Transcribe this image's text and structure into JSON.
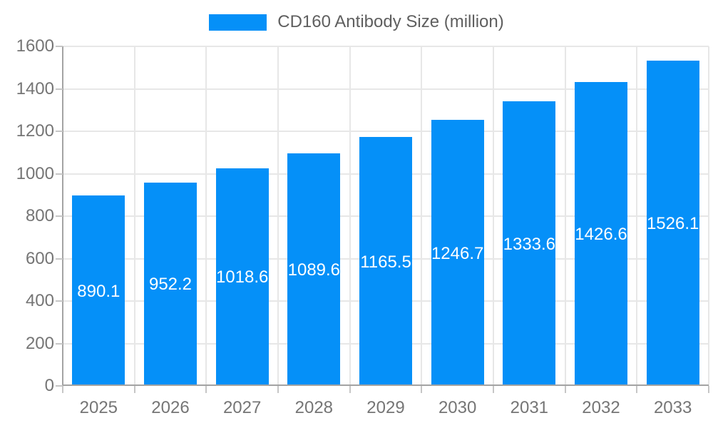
{
  "chart_data": {
    "type": "bar",
    "title": "CD160 Antibody Size (million)",
    "categories": [
      "2025",
      "2026",
      "2027",
      "2028",
      "2029",
      "2030",
      "2031",
      "2032",
      "2033"
    ],
    "values": [
      890.1,
      952.2,
      1018.6,
      1089.6,
      1165.5,
      1246.7,
      1333.6,
      1426.6,
      1526.1
    ],
    "xlabel": "",
    "ylabel": "",
    "ylim": [
      0,
      1600
    ],
    "ytick_step": 200,
    "grid": "on",
    "legend_position": "top",
    "value_labels": "inside-center",
    "colors": {
      "bar": "#0590f8",
      "axis": "#a3a3a3",
      "grid": "#e7e7e7",
      "tick": "#c6c6c6",
      "axis_label": "#757575",
      "title": "#5f5f5f",
      "bar_label": "#ffffff",
      "background": "#ffffff"
    }
  }
}
